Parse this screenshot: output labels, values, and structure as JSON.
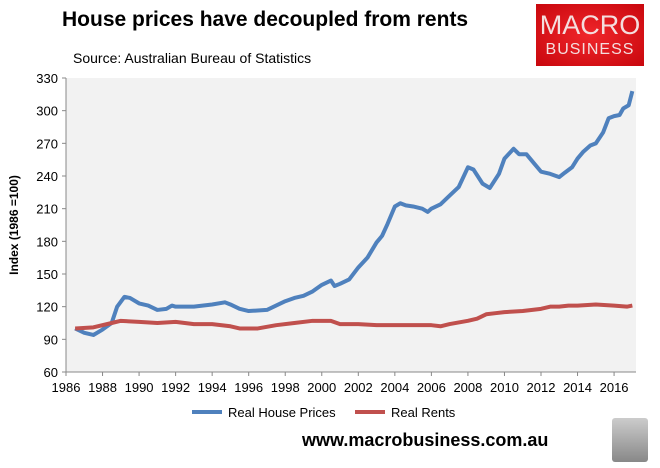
{
  "chart_data": {
    "type": "line",
    "title": "House prices have decoupled from rents",
    "subtitle": "Source: Australian Bureau of Statistics",
    "ylabel": "Index (1986 =100)",
    "xlabel": "",
    "ylim": [
      60,
      330
    ],
    "xlim": [
      1986,
      2017.2
    ],
    "yticks": [
      60,
      90,
      120,
      150,
      180,
      210,
      240,
      270,
      300,
      330
    ],
    "xticks": [
      1986,
      1988,
      1990,
      1992,
      1994,
      1996,
      1998,
      2000,
      2002,
      2004,
      2006,
      2008,
      2010,
      2012,
      2014,
      2016
    ],
    "grid": false,
    "legend": "bottom",
    "series": [
      {
        "name": "Real House Prices",
        "color": "#4f81bd",
        "points": [
          [
            1986.5,
            100
          ],
          [
            1987,
            96
          ],
          [
            1987.5,
            94
          ],
          [
            1988,
            99
          ],
          [
            1988.5,
            105
          ],
          [
            1988.8,
            120
          ],
          [
            1989.2,
            129
          ],
          [
            1989.5,
            128
          ],
          [
            1990,
            123
          ],
          [
            1990.5,
            121
          ],
          [
            1991,
            117
          ],
          [
            1991.5,
            118
          ],
          [
            1991.8,
            121
          ],
          [
            1992,
            120
          ],
          [
            1993,
            120
          ],
          [
            1994,
            122
          ],
          [
            1994.7,
            124
          ],
          [
            1995,
            122
          ],
          [
            1995.5,
            118
          ],
          [
            1996,
            116
          ],
          [
            1997,
            117
          ],
          [
            1997.5,
            121
          ],
          [
            1998,
            125
          ],
          [
            1998.5,
            128
          ],
          [
            1999,
            130
          ],
          [
            1999.5,
            134
          ],
          [
            2000,
            140
          ],
          [
            2000.5,
            144
          ],
          [
            2000.7,
            139
          ],
          [
            2001,
            141
          ],
          [
            2001.5,
            145
          ],
          [
            2002,
            156
          ],
          [
            2002.5,
            165
          ],
          [
            2003,
            179
          ],
          [
            2003.3,
            185
          ],
          [
            2003.6,
            196
          ],
          [
            2004,
            212
          ],
          [
            2004.3,
            215
          ],
          [
            2004.6,
            213
          ],
          [
            2005,
            212
          ],
          [
            2005.5,
            210
          ],
          [
            2005.8,
            207
          ],
          [
            2006,
            210
          ],
          [
            2006.5,
            214
          ],
          [
            2007,
            222
          ],
          [
            2007.5,
            230
          ],
          [
            2008,
            248
          ],
          [
            2008.3,
            246
          ],
          [
            2008.8,
            233
          ],
          [
            2009.2,
            229
          ],
          [
            2009.7,
            242
          ],
          [
            2010,
            256
          ],
          [
            2010.5,
            265
          ],
          [
            2010.8,
            260
          ],
          [
            2011.2,
            260
          ],
          [
            2011.6,
            252
          ],
          [
            2012,
            244
          ],
          [
            2012.5,
            242
          ],
          [
            2013,
            239
          ],
          [
            2013.3,
            243
          ],
          [
            2013.7,
            248
          ],
          [
            2014,
            256
          ],
          [
            2014.3,
            262
          ],
          [
            2014.7,
            268
          ],
          [
            2015,
            270
          ],
          [
            2015.4,
            280
          ],
          [
            2015.7,
            293
          ],
          [
            2016,
            295
          ],
          [
            2016.3,
            296
          ],
          [
            2016.5,
            302
          ],
          [
            2016.8,
            305
          ],
          [
            2017,
            318
          ]
        ]
      },
      {
        "name": "Real Rents",
        "color": "#c0504d",
        "points": [
          [
            1986.5,
            100
          ],
          [
            1987.5,
            101
          ],
          [
            1988.5,
            105
          ],
          [
            1989,
            107
          ],
          [
            1990,
            106
          ],
          [
            1991,
            105
          ],
          [
            1992,
            106
          ],
          [
            1993,
            104
          ],
          [
            1994,
            104
          ],
          [
            1995,
            102
          ],
          [
            1995.5,
            100
          ],
          [
            1996.5,
            100
          ],
          [
            1997.5,
            103
          ],
          [
            1998.5,
            105
          ],
          [
            1999.5,
            107
          ],
          [
            2000.5,
            107
          ],
          [
            2001,
            104
          ],
          [
            2002,
            104
          ],
          [
            2003,
            103
          ],
          [
            2004,
            103
          ],
          [
            2005,
            103
          ],
          [
            2006,
            103
          ],
          [
            2006.5,
            102
          ],
          [
            2007,
            104
          ],
          [
            2008,
            107
          ],
          [
            2008.5,
            109
          ],
          [
            2009,
            113
          ],
          [
            2009.5,
            114
          ],
          [
            2010,
            115
          ],
          [
            2011,
            116
          ],
          [
            2012,
            118
          ],
          [
            2012.5,
            120
          ],
          [
            2013,
            120
          ],
          [
            2013.5,
            121
          ],
          [
            2014,
            121
          ],
          [
            2015,
            122
          ],
          [
            2016,
            121
          ],
          [
            2016.7,
            120
          ],
          [
            2017,
            121
          ]
        ]
      }
    ]
  },
  "logo": {
    "line1": "MACRO",
    "line2": "BUSINESS"
  },
  "footer": {
    "url": "www.macrobusiness.com.au"
  }
}
